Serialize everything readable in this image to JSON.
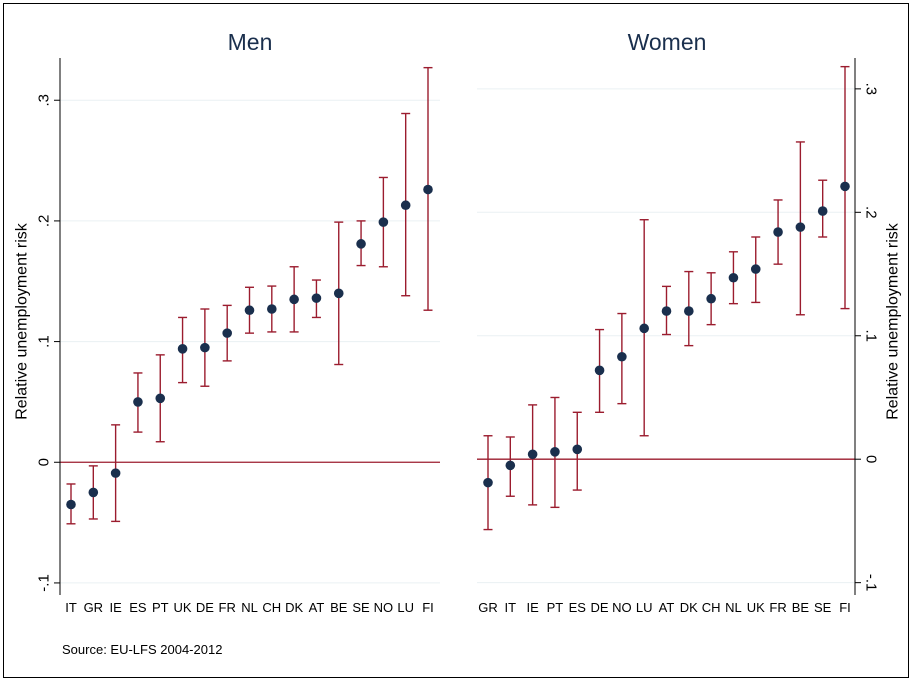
{
  "source_note": "Source: EU-LFS 2004-2012",
  "colors": {
    "background": "#ffffff",
    "grid": "#eaf0f3",
    "zero_line": "#9b1c2e",
    "ci_bar": "#9b1c2e",
    "marker": "#1a2f4d",
    "title": "#1a2f4d",
    "axis": "#000000"
  },
  "chart_data": [
    {
      "type": "scatter",
      "subtype": "point-estimate with confidence intervals",
      "title": "Men",
      "ylabel": "Relative unemployment risk",
      "yaxis_side": "left",
      "ylim": [
        -0.11,
        0.335
      ],
      "yticks": [
        -0.1,
        0,
        0.1,
        0.2,
        0.3
      ],
      "ytick_labels": [
        "-.1",
        "0",
        ".1",
        ".2",
        ".3"
      ],
      "grid": true,
      "reference_line": 0,
      "categories": [
        "IT",
        "GR",
        "IE",
        "ES",
        "PT",
        "UK",
        "DE",
        "FR",
        "NL",
        "CH",
        "DK",
        "AT",
        "BE",
        "SE",
        "NO",
        "LU",
        "FI"
      ],
      "estimate": [
        -0.035,
        -0.025,
        -0.009,
        0.05,
        0.053,
        0.094,
        0.095,
        0.107,
        0.126,
        0.127,
        0.135,
        0.136,
        0.14,
        0.181,
        0.199,
        0.213,
        0.226
      ],
      "ci_low": [
        -0.051,
        -0.047,
        -0.049,
        0.025,
        0.017,
        0.066,
        0.063,
        0.084,
        0.107,
        0.108,
        0.108,
        0.12,
        0.081,
        0.163,
        0.162,
        0.138,
        0.126
      ],
      "ci_high": [
        -0.018,
        -0.003,
        0.031,
        0.074,
        0.089,
        0.12,
        0.127,
        0.13,
        0.145,
        0.146,
        0.162,
        0.151,
        0.199,
        0.2,
        0.236,
        0.289,
        0.327
      ]
    },
    {
      "type": "scatter",
      "subtype": "point-estimate with confidence intervals",
      "title": "Women",
      "ylabel": "Relative unemployment risk",
      "yaxis_side": "right",
      "ylim": [
        -0.11,
        0.325
      ],
      "yticks": [
        -0.1,
        0,
        0.1,
        0.2,
        0.3
      ],
      "ytick_labels": [
        "-.1",
        "0",
        ".1",
        ".2",
        ".3"
      ],
      "grid": true,
      "reference_line": 0,
      "categories": [
        "GR",
        "IT",
        "IE",
        "PT",
        "ES",
        "DE",
        "NO",
        "LU",
        "AT",
        "DK",
        "CH",
        "NL",
        "UK",
        "FR",
        "BE",
        "SE",
        "FI"
      ],
      "estimate": [
        -0.019,
        -0.005,
        0.004,
        0.006,
        0.008,
        0.072,
        0.083,
        0.106,
        0.12,
        0.12,
        0.13,
        0.147,
        0.154,
        0.184,
        0.188,
        0.201,
        0.221
      ],
      "ci_low": [
        -0.057,
        -0.03,
        -0.037,
        -0.039,
        -0.025,
        0.038,
        0.045,
        0.019,
        0.101,
        0.092,
        0.109,
        0.126,
        0.127,
        0.158,
        0.117,
        0.18,
        0.122
      ],
      "ci_high": [
        0.019,
        0.018,
        0.044,
        0.05,
        0.038,
        0.105,
        0.118,
        0.194,
        0.14,
        0.152,
        0.151,
        0.168,
        0.18,
        0.21,
        0.257,
        0.226,
        0.318
      ]
    }
  ]
}
